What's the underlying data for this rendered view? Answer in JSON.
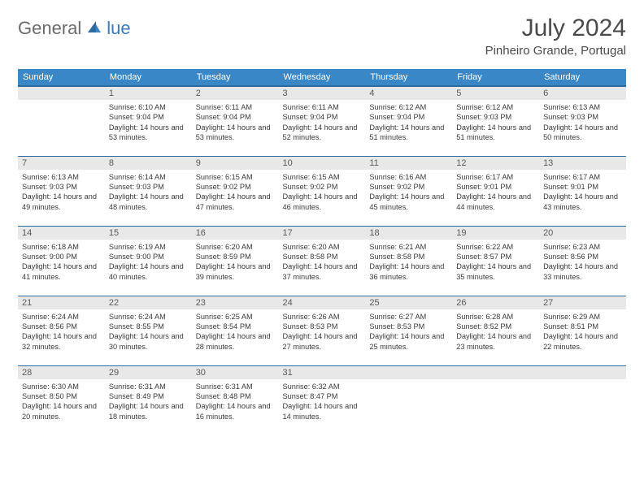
{
  "logo": {
    "text1": "General",
    "text2": "lue"
  },
  "title": "July 2024",
  "location": "Pinheiro Grande, Portugal",
  "weekdays": [
    "Sunday",
    "Monday",
    "Tuesday",
    "Wednesday",
    "Thursday",
    "Friday",
    "Saturday"
  ],
  "colors": {
    "header_bg": "#3a87c8",
    "header_border": "#2d6aa0",
    "daynum_bg": "#e8e8e8",
    "logo_gray": "#6b6b6b",
    "logo_blue": "#3a79b7",
    "text": "#3a3a3a"
  },
  "weeks": [
    [
      {
        "n": "",
        "sr": "",
        "ss": "",
        "dl": ""
      },
      {
        "n": "1",
        "sr": "Sunrise: 6:10 AM",
        "ss": "Sunset: 9:04 PM",
        "dl": "Daylight: 14 hours and 53 minutes."
      },
      {
        "n": "2",
        "sr": "Sunrise: 6:11 AM",
        "ss": "Sunset: 9:04 PM",
        "dl": "Daylight: 14 hours and 53 minutes."
      },
      {
        "n": "3",
        "sr": "Sunrise: 6:11 AM",
        "ss": "Sunset: 9:04 PM",
        "dl": "Daylight: 14 hours and 52 minutes."
      },
      {
        "n": "4",
        "sr": "Sunrise: 6:12 AM",
        "ss": "Sunset: 9:04 PM",
        "dl": "Daylight: 14 hours and 51 minutes."
      },
      {
        "n": "5",
        "sr": "Sunrise: 6:12 AM",
        "ss": "Sunset: 9:03 PM",
        "dl": "Daylight: 14 hours and 51 minutes."
      },
      {
        "n": "6",
        "sr": "Sunrise: 6:13 AM",
        "ss": "Sunset: 9:03 PM",
        "dl": "Daylight: 14 hours and 50 minutes."
      }
    ],
    [
      {
        "n": "7",
        "sr": "Sunrise: 6:13 AM",
        "ss": "Sunset: 9:03 PM",
        "dl": "Daylight: 14 hours and 49 minutes."
      },
      {
        "n": "8",
        "sr": "Sunrise: 6:14 AM",
        "ss": "Sunset: 9:03 PM",
        "dl": "Daylight: 14 hours and 48 minutes."
      },
      {
        "n": "9",
        "sr": "Sunrise: 6:15 AM",
        "ss": "Sunset: 9:02 PM",
        "dl": "Daylight: 14 hours and 47 minutes."
      },
      {
        "n": "10",
        "sr": "Sunrise: 6:15 AM",
        "ss": "Sunset: 9:02 PM",
        "dl": "Daylight: 14 hours and 46 minutes."
      },
      {
        "n": "11",
        "sr": "Sunrise: 6:16 AM",
        "ss": "Sunset: 9:02 PM",
        "dl": "Daylight: 14 hours and 45 minutes."
      },
      {
        "n": "12",
        "sr": "Sunrise: 6:17 AM",
        "ss": "Sunset: 9:01 PM",
        "dl": "Daylight: 14 hours and 44 minutes."
      },
      {
        "n": "13",
        "sr": "Sunrise: 6:17 AM",
        "ss": "Sunset: 9:01 PM",
        "dl": "Daylight: 14 hours and 43 minutes."
      }
    ],
    [
      {
        "n": "14",
        "sr": "Sunrise: 6:18 AM",
        "ss": "Sunset: 9:00 PM",
        "dl": "Daylight: 14 hours and 41 minutes."
      },
      {
        "n": "15",
        "sr": "Sunrise: 6:19 AM",
        "ss": "Sunset: 9:00 PM",
        "dl": "Daylight: 14 hours and 40 minutes."
      },
      {
        "n": "16",
        "sr": "Sunrise: 6:20 AM",
        "ss": "Sunset: 8:59 PM",
        "dl": "Daylight: 14 hours and 39 minutes."
      },
      {
        "n": "17",
        "sr": "Sunrise: 6:20 AM",
        "ss": "Sunset: 8:58 PM",
        "dl": "Daylight: 14 hours and 37 minutes."
      },
      {
        "n": "18",
        "sr": "Sunrise: 6:21 AM",
        "ss": "Sunset: 8:58 PM",
        "dl": "Daylight: 14 hours and 36 minutes."
      },
      {
        "n": "19",
        "sr": "Sunrise: 6:22 AM",
        "ss": "Sunset: 8:57 PM",
        "dl": "Daylight: 14 hours and 35 minutes."
      },
      {
        "n": "20",
        "sr": "Sunrise: 6:23 AM",
        "ss": "Sunset: 8:56 PM",
        "dl": "Daylight: 14 hours and 33 minutes."
      }
    ],
    [
      {
        "n": "21",
        "sr": "Sunrise: 6:24 AM",
        "ss": "Sunset: 8:56 PM",
        "dl": "Daylight: 14 hours and 32 minutes."
      },
      {
        "n": "22",
        "sr": "Sunrise: 6:24 AM",
        "ss": "Sunset: 8:55 PM",
        "dl": "Daylight: 14 hours and 30 minutes."
      },
      {
        "n": "23",
        "sr": "Sunrise: 6:25 AM",
        "ss": "Sunset: 8:54 PM",
        "dl": "Daylight: 14 hours and 28 minutes."
      },
      {
        "n": "24",
        "sr": "Sunrise: 6:26 AM",
        "ss": "Sunset: 8:53 PM",
        "dl": "Daylight: 14 hours and 27 minutes."
      },
      {
        "n": "25",
        "sr": "Sunrise: 6:27 AM",
        "ss": "Sunset: 8:53 PM",
        "dl": "Daylight: 14 hours and 25 minutes."
      },
      {
        "n": "26",
        "sr": "Sunrise: 6:28 AM",
        "ss": "Sunset: 8:52 PM",
        "dl": "Daylight: 14 hours and 23 minutes."
      },
      {
        "n": "27",
        "sr": "Sunrise: 6:29 AM",
        "ss": "Sunset: 8:51 PM",
        "dl": "Daylight: 14 hours and 22 minutes."
      }
    ],
    [
      {
        "n": "28",
        "sr": "Sunrise: 6:30 AM",
        "ss": "Sunset: 8:50 PM",
        "dl": "Daylight: 14 hours and 20 minutes."
      },
      {
        "n": "29",
        "sr": "Sunrise: 6:31 AM",
        "ss": "Sunset: 8:49 PM",
        "dl": "Daylight: 14 hours and 18 minutes."
      },
      {
        "n": "30",
        "sr": "Sunrise: 6:31 AM",
        "ss": "Sunset: 8:48 PM",
        "dl": "Daylight: 14 hours and 16 minutes."
      },
      {
        "n": "31",
        "sr": "Sunrise: 6:32 AM",
        "ss": "Sunset: 8:47 PM",
        "dl": "Daylight: 14 hours and 14 minutes."
      },
      {
        "n": "",
        "sr": "",
        "ss": "",
        "dl": ""
      },
      {
        "n": "",
        "sr": "",
        "ss": "",
        "dl": ""
      },
      {
        "n": "",
        "sr": "",
        "ss": "",
        "dl": ""
      }
    ]
  ]
}
